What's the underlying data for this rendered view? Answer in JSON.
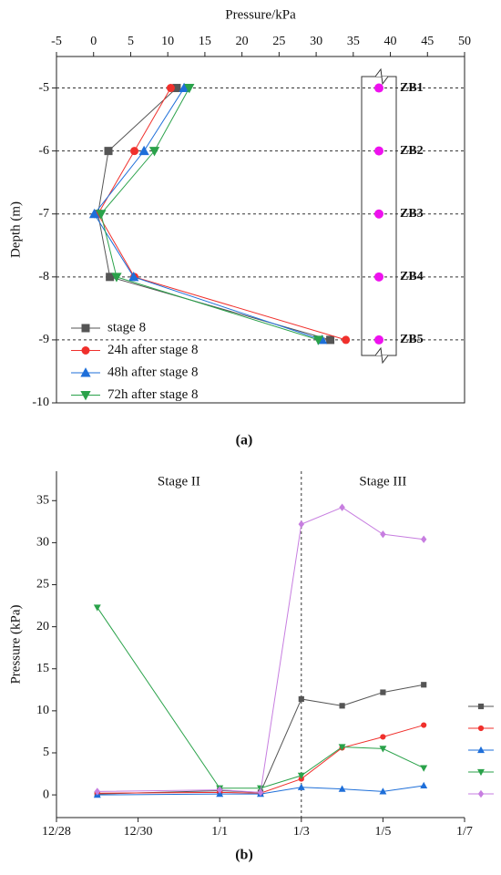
{
  "chart_data": [
    {
      "type": "line",
      "xlabel": "Pressure/kPa",
      "ylabel": "Depth (m)",
      "caption": "(a)",
      "x_axis_position": "top",
      "xlim": [
        -5,
        50
      ],
      "xticks": [
        -5,
        0,
        5,
        10,
        15,
        20,
        25,
        30,
        35,
        40,
        45,
        50
      ],
      "ylim": [
        -10,
        -4.5
      ],
      "yticks": [
        -10,
        -9,
        -8,
        -7,
        -6,
        -5
      ],
      "grid": true,
      "legend": "lower left",
      "y": [
        -5,
        -6,
        -7,
        -8,
        -9
      ],
      "sensors": [
        "ZB1",
        "ZB2",
        "ZB3",
        "ZB4",
        "ZB5"
      ],
      "sensor_color": "#ee11ee",
      "series": [
        {
          "name": "stage 8",
          "color": "#555555",
          "marker": "square",
          "values": [
            11.2,
            2.0,
            0.6,
            2.2,
            31.9
          ]
        },
        {
          "name": "24h after stage 8",
          "color": "#f0302c",
          "marker": "circle",
          "values": [
            10.4,
            5.5,
            0.6,
            5.5,
            34.0
          ]
        },
        {
          "name": "48h after stage 8",
          "color": "#1e6fd9",
          "marker": "triangle-up",
          "values": [
            12.2,
            6.8,
            0.1,
            5.4,
            30.8
          ]
        },
        {
          "name": "72h after stage 8",
          "color": "#2aa24a",
          "marker": "triangle-down",
          "values": [
            12.9,
            8.2,
            1.0,
            3.1,
            30.3
          ]
        }
      ]
    },
    {
      "type": "line",
      "ylabel": "Pressure (kPa)",
      "caption": "(b)",
      "xlim": [
        "12/28",
        "1/7"
      ],
      "xticks": [
        "12/28",
        "12/30",
        "1/1",
        "1/3",
        "1/5",
        "1/7"
      ],
      "ylim": [
        -2.7,
        38.5
      ],
      "yticks": [
        0,
        5,
        10,
        15,
        20,
        25,
        30,
        35
      ],
      "legend": "right",
      "divider": "1/3",
      "annotations": [
        "Stage II",
        "Stage III"
      ],
      "x": [
        "12/29",
        "1/1",
        "1/2",
        "1/3",
        "1/4",
        "1/5",
        "1/6"
      ],
      "series": [
        {
          "color": "#555555",
          "marker": "square",
          "values": [
            0.1,
            0.5,
            0.3,
            11.4,
            10.6,
            12.2,
            13.1
          ]
        },
        {
          "color": "#f0302c",
          "marker": "circle",
          "values": [
            0.2,
            0.3,
            0.2,
            1.9,
            5.6,
            6.9,
            8.3
          ]
        },
        {
          "color": "#1e6fd9",
          "marker": "triangle-up",
          "values": [
            0.0,
            0.1,
            0.1,
            0.9,
            0.7,
            0.4,
            1.1
          ]
        },
        {
          "color": "#2aa24a",
          "marker": "triangle-down",
          "values": [
            22.3,
            0.8,
            0.8,
            2.3,
            5.7,
            5.5,
            3.2
          ]
        },
        {
          "color": "#c77ee0",
          "marker": "diamond",
          "values": [
            0.4,
            0.6,
            0.3,
            32.2,
            34.2,
            31.0,
            30.4
          ]
        }
      ]
    }
  ]
}
